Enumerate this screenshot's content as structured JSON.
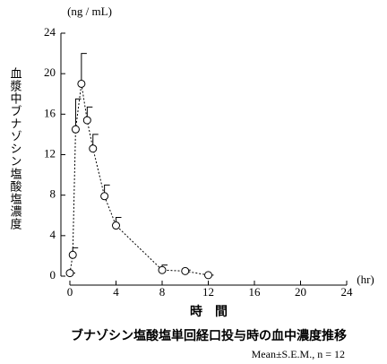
{
  "chart_data": {
    "type": "line",
    "title": "ブナゾシン塩酸塩単回経口投与時の血中濃度推移",
    "subtitle": "Mean±S.E.M., n = 12",
    "y_label": "血漿中ブナゾシン塩酸塩濃度",
    "y_unit": "(ng / mL)",
    "x_label": "時　間",
    "x_unit": "(hr)",
    "x": [
      0,
      0.25,
      0.5,
      1,
      1.5,
      2,
      3,
      4,
      8,
      10,
      12
    ],
    "values": [
      0.3,
      2.1,
      14.5,
      19.0,
      15.4,
      12.6,
      7.9,
      5.0,
      0.6,
      0.5,
      0.1
    ],
    "errors": [
      0,
      0.7,
      3.0,
      3.0,
      1.3,
      1.4,
      1.1,
      0.8,
      0.5,
      0.1,
      0
    ],
    "color": "#000000",
    "xlim": [
      0,
      24
    ],
    "xticks": [
      0,
      4,
      8,
      12,
      16,
      20,
      24
    ],
    "ylim": [
      0,
      24
    ],
    "yticks": [
      0,
      4,
      8,
      12,
      16,
      20,
      24
    ]
  }
}
